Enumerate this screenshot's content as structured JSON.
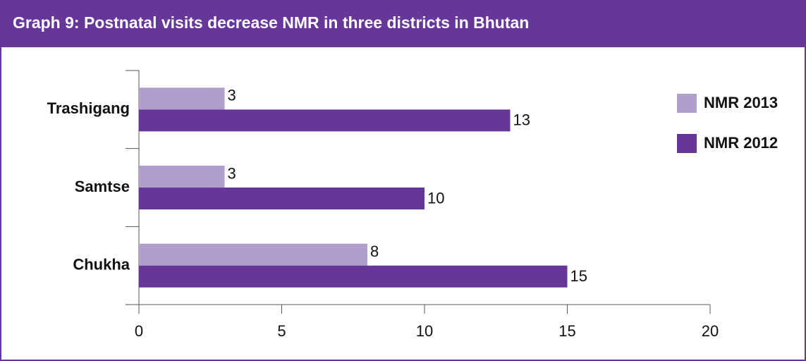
{
  "chart_data": {
    "type": "hbar",
    "title": "Graph 9:  Postnatal visits decrease NMR in three districts in Bhutan",
    "categories": [
      "Trashigang",
      "Samtse",
      "Chukha"
    ],
    "series": [
      {
        "name": "NMR 2013",
        "color": "#b09fcd",
        "values": [
          3,
          3,
          8
        ]
      },
      {
        "name": "NMR 2012",
        "color": "#663798",
        "values": [
          13,
          10,
          15
        ]
      }
    ],
    "xlim": [
      0,
      20
    ],
    "xticks": [
      0,
      5,
      10,
      15,
      20
    ],
    "legend": "right"
  }
}
